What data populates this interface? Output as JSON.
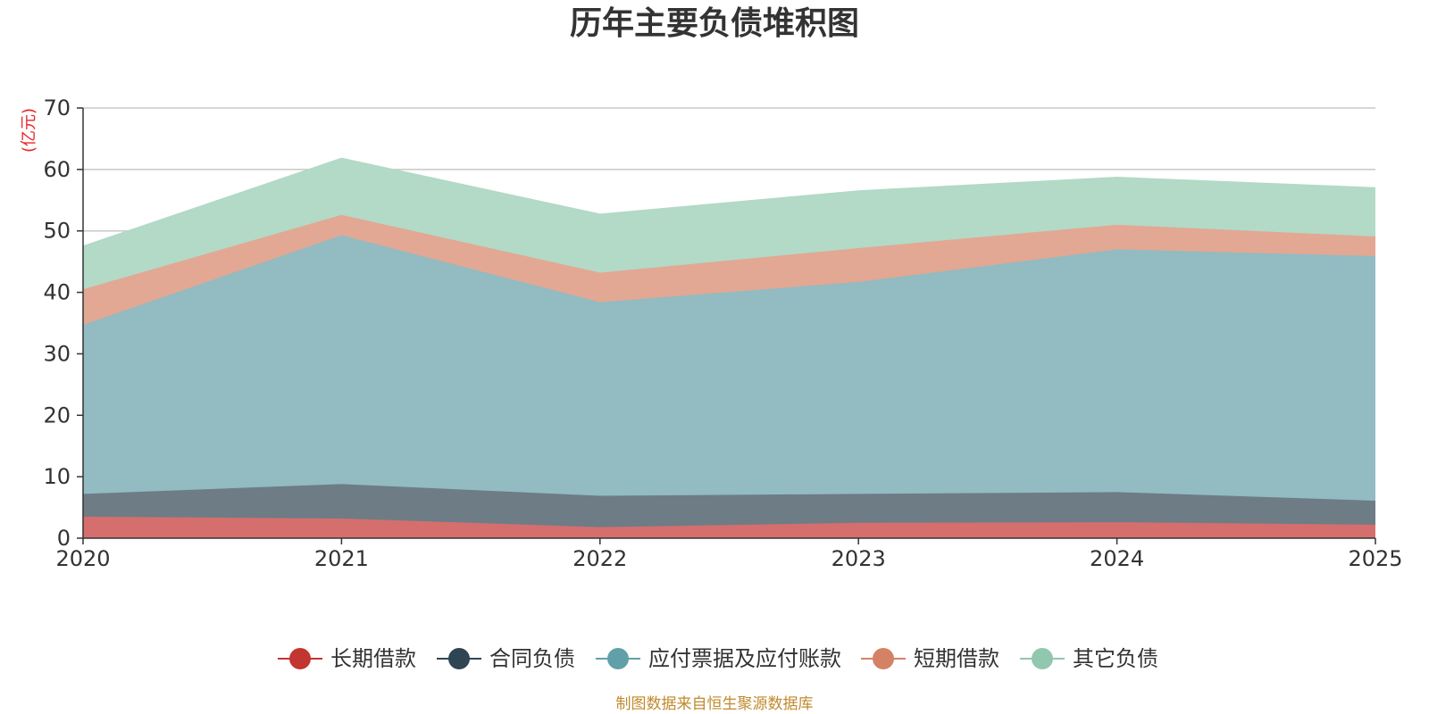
{
  "chart_data": {
    "type": "area",
    "stacked": true,
    "title": "历年主要负债堆积图",
    "ylabel": "(亿元)",
    "xlabel": "",
    "ylim": [
      0,
      70
    ],
    "yticks": [
      0,
      10,
      20,
      30,
      40,
      50,
      60,
      70
    ],
    "grid": true,
    "legend_position": "bottom",
    "categories": [
      "2020",
      "2021",
      "2022",
      "2023",
      "2024",
      "2025"
    ],
    "series": [
      {
        "name": "长期借款",
        "color": "#c23531",
        "fill": "#d46f6d",
        "values": [
          3.5,
          3.2,
          1.8,
          2.5,
          2.6,
          2.2
        ]
      },
      {
        "name": "合同负债",
        "color": "#2f4554",
        "fill": "#6e7c86",
        "values": [
          3.7,
          5.6,
          5.1,
          4.7,
          4.9,
          3.9
        ]
      },
      {
        "name": "应付票据及应付账款",
        "color": "#61a0a8",
        "fill": "#92bbc2",
        "values": [
          27.5,
          40.5,
          31.5,
          34.5,
          39.5,
          39.8
        ]
      },
      {
        "name": "短期借款",
        "color": "#d48265",
        "fill": "#e2a893",
        "values": [
          5.8,
          3.3,
          4.8,
          5.5,
          4.0,
          3.2
        ]
      },
      {
        "name": "其它负债",
        "color": "#91c7ae",
        "fill": "#b3d9c7",
        "values": [
          7.0,
          9.2,
          9.5,
          9.3,
          7.7,
          7.9
        ]
      }
    ],
    "source_note": "制图数据来自恒生聚源数据库"
  }
}
